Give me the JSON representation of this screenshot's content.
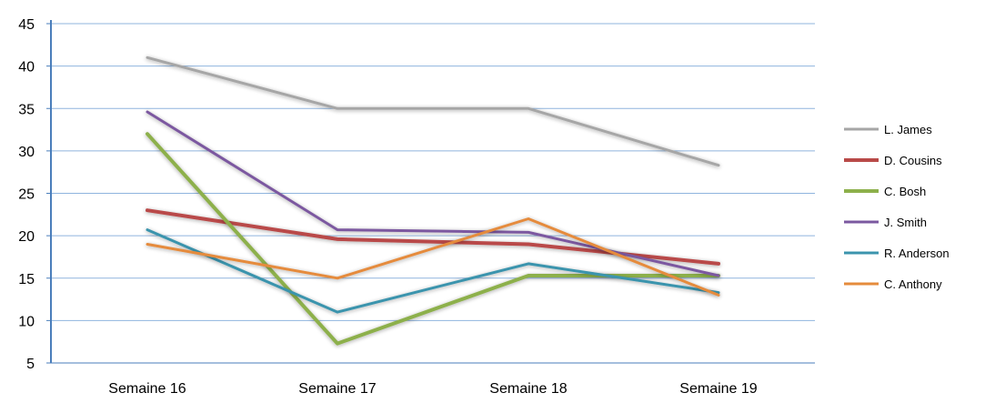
{
  "chart_data": {
    "type": "line",
    "categories": [
      "Semaine 16",
      "Semaine 17",
      "Semaine 18",
      "Semaine 19"
    ],
    "ylim": [
      5,
      45
    ],
    "yticks": [
      5,
      10,
      15,
      20,
      25,
      30,
      35,
      40,
      45
    ],
    "grid": true,
    "legend_position": "right",
    "series": [
      {
        "name": "L. James",
        "values": [
          41,
          35,
          35,
          28.3
        ],
        "color": "#a6a6a6",
        "width": 3
      },
      {
        "name": "D. Cousins",
        "values": [
          23,
          19.6,
          19,
          16.7
        ],
        "color": "#b94a48",
        "width": 4
      },
      {
        "name": "C. Bosh",
        "values": [
          32,
          7.3,
          15.3,
          15.3
        ],
        "color": "#8db04b",
        "width": 4
      },
      {
        "name": "J. Smith",
        "values": [
          34.6,
          20.7,
          20.4,
          15.3
        ],
        "color": "#7b59a0",
        "width": 3
      },
      {
        "name": "R. Anderson",
        "values": [
          20.7,
          11,
          16.7,
          13.3
        ],
        "color": "#3b94ad",
        "width": 3
      },
      {
        "name": "C. Anthony",
        "values": [
          19,
          15,
          22,
          13
        ],
        "color": "#e58b3c",
        "width": 3
      }
    ]
  }
}
